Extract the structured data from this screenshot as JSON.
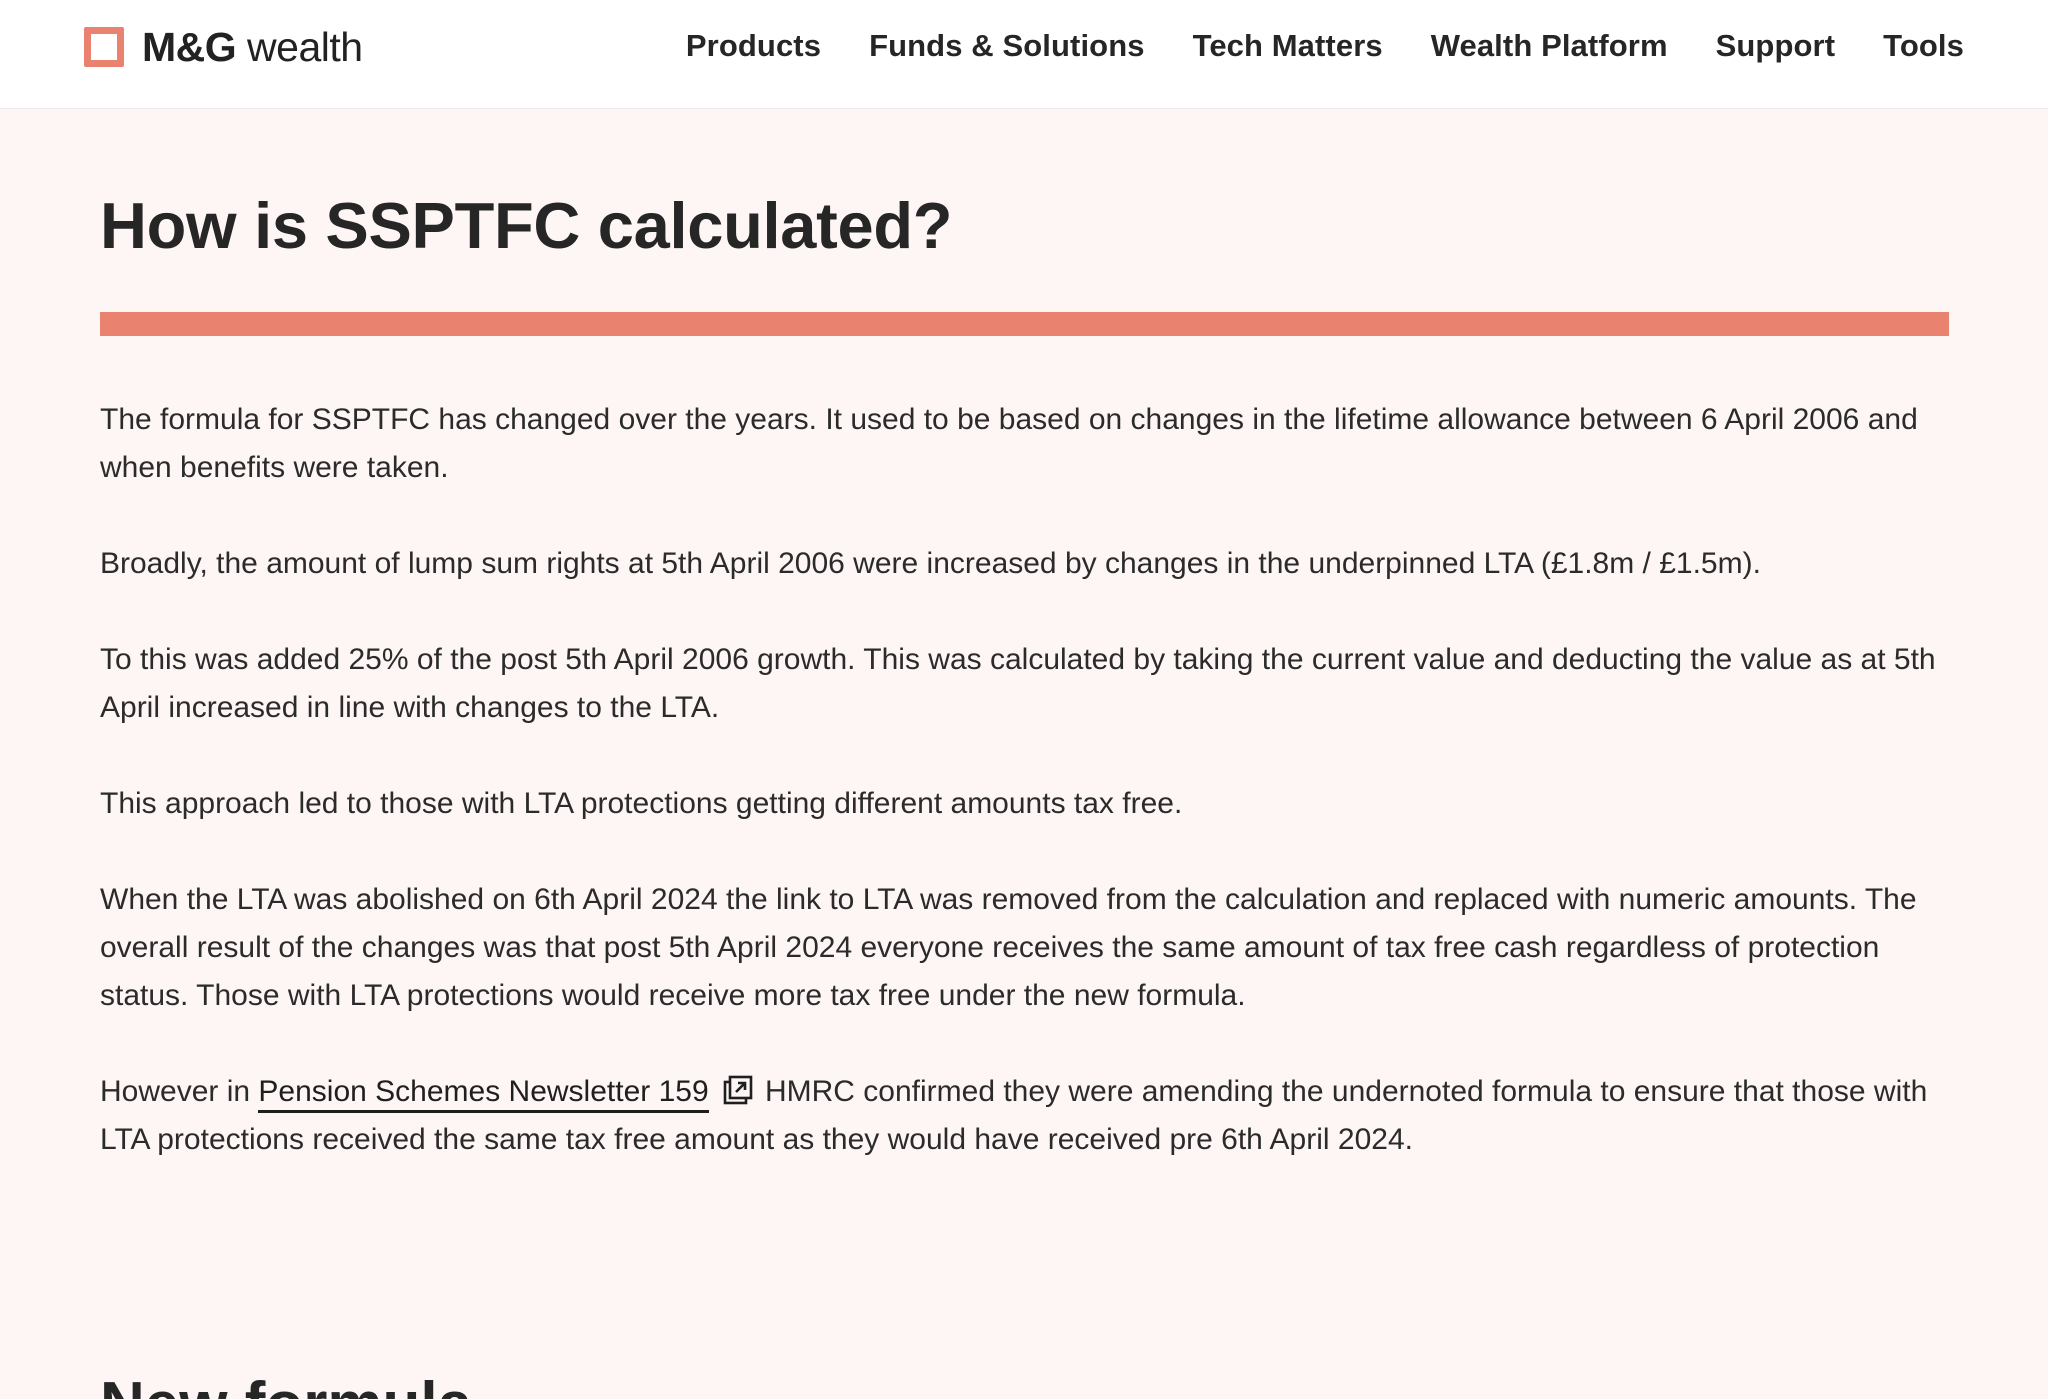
{
  "header": {
    "logo": {
      "brand_bold": "M&G",
      "brand_light": " wealth"
    },
    "nav": [
      {
        "label": "Products"
      },
      {
        "label": "Funds & Solutions"
      },
      {
        "label": "Tech Matters"
      },
      {
        "label": "Wealth Platform"
      },
      {
        "label": "Support"
      },
      {
        "label": "Tools"
      }
    ]
  },
  "main": {
    "title": "How is SSPTFC calculated?",
    "paragraphs": [
      "The formula for SSPTFC has changed over the years. It used to be based on changes in the lifetime allowance between 6 April 2006 and when benefits were taken.",
      "Broadly, the amount of lump sum rights at 5th April 2006 were increased by changes in the underpinned LTA (£1.8m / £1.5m).",
      "To this was added 25% of the post 5th April 2006 growth. This was calculated by taking the current value and deducting the value as at 5th April increased in line with changes to the LTA.",
      "This approach led to those with LTA protections getting different amounts tax free.",
      "When the LTA was abolished on 6th April 2024 the link to LTA was removed from the calculation and replaced with numeric amounts. The overall result of the changes was that post 5th April 2024 everyone receives the same amount of tax free cash regardless of protection status.  Those with LTA protections would receive more tax free under the new formula."
    ],
    "last_paragraph": {
      "before": "However in ",
      "link": "Pension Schemes Newsletter 159",
      "after": " HMRC confirmed they were amending the undernoted formula to ensure that those with LTA protections received the same tax free amount as they would have received pre 6th April 2024."
    },
    "next_heading": "New formula"
  },
  "icons": {
    "logo_mark": "square-outline-logo-icon",
    "external_link": "external-link-icon"
  },
  "colors": {
    "accent": "#e9836f",
    "background": "#fdf6f5",
    "header_bg": "#ffffff",
    "text": "#2b2b2b"
  }
}
